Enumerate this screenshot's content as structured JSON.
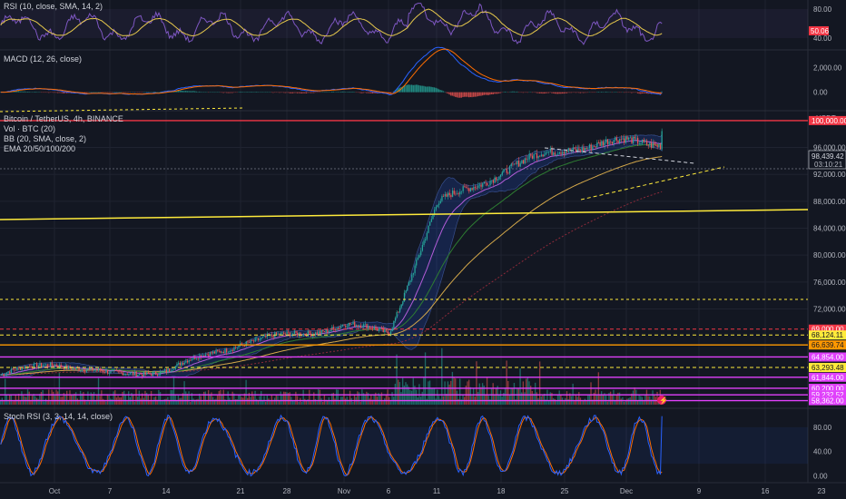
{
  "colors": {
    "background": "#131722",
    "grid": "#1f2330",
    "axis_text": "#b2b5be",
    "up": "#26a69a",
    "down": "#ef5350",
    "rsi": "#7e57c2",
    "rsi_ma": "#e6c84c",
    "macd": "#2962ff",
    "signal": "#ff6d00",
    "bb_fill": "#2962ff",
    "ema20": "#b35dd9",
    "ema50": "#2e7d32",
    "ema100": "#d4a84a",
    "ema200": "#8b2a3a",
    "stoch_k": "#2962ff",
    "stoch_d": "#ff6d00",
    "magenta": "#e040fb",
    "red_line": "#f23645",
    "yellow_line": "#ffeb3b"
  },
  "panes": {
    "rsi": {
      "title": "RSI (10, close, SMA, 14, 2)",
      "ticks": [
        "80.00",
        "40.00"
      ],
      "tick_values": [
        80,
        40
      ],
      "ylim": [
        30,
        90
      ],
      "badge": "50.06",
      "badge_value": 50.06
    },
    "macd": {
      "title": "MACD (12, 26, close)",
      "ticks": [
        "2,000.00",
        "0.00"
      ],
      "tick_values": [
        2000,
        0
      ],
      "ylim": [
        -1200,
        3200
      ]
    },
    "main": {
      "title": "Bitcoin / TetherUS, 4h, BINANCE",
      "indicators": [
        "Vol · BTC (20)",
        "BB (20, SMA, close, 2)",
        "EMA 20/50/100/200"
      ],
      "currency": "USDT",
      "ylim": [
        57500,
        101200
      ],
      "ticks": [
        "96,000.00",
        "92,000.00",
        "88,000.00",
        "84,000.00",
        "80,000.00",
        "76,000.00",
        "72,000.00"
      ],
      "tick_values": [
        96000,
        92000,
        88000,
        84000,
        80000,
        76000,
        72000
      ],
      "price_badge": "98,439.42",
      "countdown": "03:10:21",
      "current_price": 98439.42,
      "levels": [
        {
          "label": "100,000.00",
          "value": 100000,
          "color": "#f23645",
          "style": "solid"
        },
        {
          "label": "69,000.00",
          "value": 69000,
          "color": "#f23645",
          "style": "dashed"
        },
        {
          "label": "68,124.11",
          "value": 68124.11,
          "color": "#ffeb3b",
          "style": "dashed"
        },
        {
          "label": "66,639.74",
          "value": 66639.74,
          "color": "#ff9800",
          "style": "solid"
        },
        {
          "label": "64,854.00",
          "value": 64854,
          "color": "#e040fb",
          "style": "solid"
        },
        {
          "label": "63,293.48",
          "value": 63293.48,
          "color": "#ffeb3b",
          "style": "dashed"
        },
        {
          "label": "61,844.00",
          "value": 61844,
          "color": "#e040fb",
          "style": "solid"
        },
        {
          "label": "60,200.00",
          "value": 60200,
          "color": "#e040fb",
          "style": "solid"
        },
        {
          "label": "59,232.52",
          "value": 59232.52,
          "color": "#e040fb",
          "style": "solid"
        },
        {
          "label": "58,362.00",
          "value": 58362,
          "color": "#e040fb",
          "style": "solid"
        }
      ]
    },
    "stoch": {
      "title": "Stoch RSI (3, 3, 14, 14, close)",
      "ticks": [
        "80.00",
        "40.00",
        "0.00"
      ],
      "tick_values": [
        80,
        40,
        0
      ],
      "ylim": [
        -8,
        108
      ]
    }
  },
  "x_axis": {
    "labels": [
      "Oct",
      "7",
      "14",
      "21",
      "28",
      "Nov",
      "6",
      "11",
      "18",
      "25",
      "Dec",
      "9",
      "16",
      "23"
    ]
  },
  "chart_data": {
    "type": "line",
    "title": "Bitcoin / TetherUS, 4h, BINANCE",
    "xlabel": "",
    "ylabel": "",
    "x_labels": [
      "Oct",
      "7",
      "14",
      "21",
      "28",
      "Nov",
      "6",
      "11",
      "18",
      "25",
      "Dec",
      "9",
      "16",
      "23"
    ],
    "ylim": [
      57500,
      101200
    ],
    "series": [
      {
        "name": "",
        "x": [
          "Oct",
          "7",
          "14",
          "21",
          "28",
          "Nov",
          "6",
          "11",
          "18",
          "25",
          "Dec"
        ],
        "values": [
          64000,
          62200,
          62900,
          67000,
          68000,
          69600,
          68500,
          87500,
          92500,
          96000,
          96800
        ]
      }
    ],
    "grid": true,
    "legend": "none"
  }
}
